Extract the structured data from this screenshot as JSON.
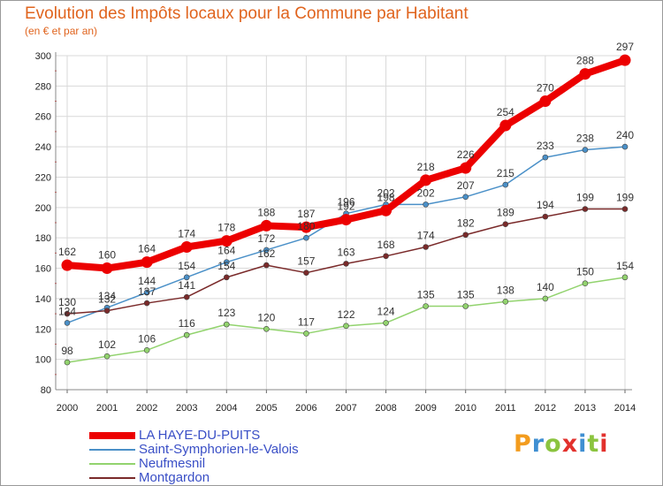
{
  "header": {
    "title": "Evolution des Impôts locaux pour la Commune par Habitant",
    "subtitle": "(en € et par an)"
  },
  "brand": {
    "name": "Proxiti",
    "letter_colors": [
      "#f39c1e",
      "#3f8fd2",
      "#8bc43f",
      "#e2312d",
      "#3f8fd2",
      "#8bc43f",
      "#e2312d"
    ]
  },
  "colors": {
    "title": "#e0641e",
    "axis_text": "#222222",
    "grid": "#d9d9d9",
    "axis_tick_red": "#e0322c"
  },
  "chart_data": {
    "type": "line",
    "x": [
      2000,
      2001,
      2002,
      2003,
      2004,
      2005,
      2006,
      2007,
      2008,
      2009,
      2010,
      2011,
      2012,
      2013,
      2014
    ],
    "ylim": [
      80,
      300
    ],
    "yticks": [
      80,
      100,
      120,
      140,
      160,
      180,
      200,
      220,
      240,
      260,
      280,
      300
    ],
    "grid": true,
    "legend_position": "bottom-left",
    "series": [
      {
        "name": "LA HAYE-DU-PUITS",
        "color": "#ec0000",
        "emphasis": true,
        "values": [
          162,
          160,
          164,
          174,
          178,
          188,
          187,
          192,
          198,
          218,
          226,
          254,
          270,
          288,
          297
        ]
      },
      {
        "name": "Saint-Symphorien-le-Valois",
        "color": "#4a90c8",
        "emphasis": false,
        "values": [
          124,
          134,
          144,
          154,
          164,
          172,
          180,
          196,
          202,
          202,
          207,
          215,
          233,
          238,
          240
        ]
      },
      {
        "name": "Neufmesnil",
        "color": "#92d36e",
        "emphasis": false,
        "values": [
          98,
          102,
          106,
          116,
          123,
          120,
          117,
          122,
          124,
          135,
          135,
          138,
          140,
          150,
          154
        ]
      },
      {
        "name": "Montgardon",
        "color": "#7a2a2a",
        "emphasis": false,
        "values": [
          130,
          132,
          137,
          141,
          154,
          162,
          157,
          163,
          168,
          174,
          182,
          189,
          194,
          199,
          199
        ]
      }
    ]
  }
}
